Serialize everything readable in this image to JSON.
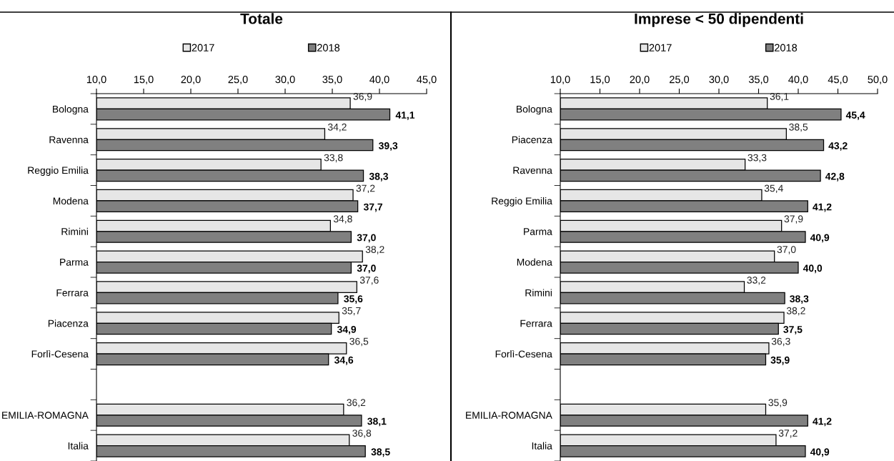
{
  "chart_data": [
    {
      "type": "bar",
      "orientation": "horizontal",
      "title": "Totale",
      "legend": "top",
      "grid": false,
      "categories": [
        "Bologna",
        "Ravenna",
        "Reggio Emilia",
        "Modena",
        "Rimini",
        "Parma",
        "Ferrara",
        "Piacenza",
        "Forlì-Cesena",
        null,
        "EMILIA-ROMAGNA",
        "Italia"
      ],
      "series": [
        {
          "name": "2017",
          "color": "#e6e6e6",
          "values": [
            36.9,
            34.2,
            33.8,
            37.2,
            34.8,
            38.2,
            37.6,
            35.7,
            36.5,
            null,
            36.2,
            36.8
          ],
          "value_labels": [
            "36,9",
            "34,2",
            "33,8",
            "37,2",
            "34,8",
            "38,2",
            "37,6",
            "35,7",
            "36,5",
            null,
            "36,2",
            "36,8"
          ]
        },
        {
          "name": "2018",
          "color": "#808080",
          "values": [
            41.1,
            39.3,
            38.3,
            37.7,
            37.0,
            37.0,
            35.6,
            34.9,
            34.6,
            null,
            38.1,
            38.5
          ],
          "value_labels": [
            "41,1",
            "39,3",
            "38,3",
            "37,7",
            "37,0",
            "37,0",
            "35,6",
            "34,9",
            "34,6",
            null,
            "38,1",
            "38,5"
          ]
        }
      ],
      "xlim": [
        10,
        45
      ],
      "xticks": [
        {
          "value": 10,
          "label": "10,0"
        },
        {
          "value": 15,
          "label": "15,0"
        },
        {
          "value": 20,
          "label": "20,0"
        },
        {
          "value": 25,
          "label": "25,0"
        },
        {
          "value": 30,
          "label": "30,0"
        },
        {
          "value": 35,
          "label": "35,0"
        },
        {
          "value": 40,
          "label": "40,0"
        },
        {
          "value": 45,
          "label": "45,0"
        }
      ]
    },
    {
      "type": "bar",
      "orientation": "horizontal",
      "title": "Imprese < 50 dipendenti",
      "legend": "top",
      "grid": false,
      "categories": [
        "Bologna",
        "Piacenza",
        "Ravenna",
        "Reggio Emilia",
        "Parma",
        "Modena",
        "Rimini",
        "Ferrara",
        "Forlì-Cesena",
        null,
        "EMILIA-ROMAGNA",
        "Italia"
      ],
      "series": [
        {
          "name": "2017",
          "color": "#e6e6e6",
          "values": [
            36.1,
            38.5,
            33.3,
            35.4,
            37.9,
            37.0,
            33.2,
            38.2,
            36.3,
            null,
            35.9,
            37.2
          ],
          "value_labels": [
            "36,1",
            "38,5",
            "33,3",
            "35,4",
            "37,9",
            "37,0",
            "33,2",
            "38,2",
            "36,3",
            null,
            "35,9",
            "37,2"
          ]
        },
        {
          "name": "2018",
          "color": "#808080",
          "values": [
            45.4,
            43.2,
            42.8,
            41.2,
            40.9,
            40.0,
            38.3,
            37.5,
            35.9,
            null,
            41.2,
            40.9
          ],
          "value_labels": [
            "45,4",
            "43,2",
            "42,8",
            "41,2",
            "40,9",
            "40,0",
            "38,3",
            "37,5",
            "35,9",
            null,
            "41,2",
            "40,9"
          ]
        }
      ],
      "xlim": [
        10,
        50
      ],
      "xticks": [
        {
          "value": 10,
          "label": "10,0"
        },
        {
          "value": 15,
          "label": "15,0"
        },
        {
          "value": 20,
          "label": "20,0"
        },
        {
          "value": 25,
          "label": "25,0"
        },
        {
          "value": 30,
          "label": "30,0"
        },
        {
          "value": 35,
          "label": "35,0"
        },
        {
          "value": 40,
          "label": "40,0"
        },
        {
          "value": 45,
          "label": "45,0"
        },
        {
          "value": 50,
          "label": "50,0"
        }
      ]
    }
  ]
}
